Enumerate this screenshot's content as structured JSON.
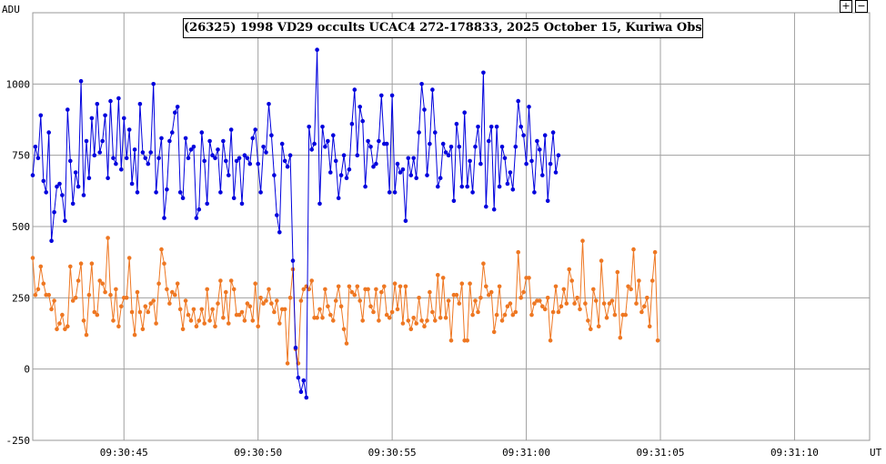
{
  "zoom": {
    "in_label": "+",
    "out_label": "−"
  },
  "chart_data": {
    "type": "line",
    "title": "(26325) 1998 VD29 occults UCAC4 272-178833, 2025 October 15, Kuriwa Observatory",
    "ylabel": "ADU",
    "xlabel": "UT",
    "ylim": [
      -250,
      1250
    ],
    "yticks": [
      -250,
      0,
      250,
      500,
      750,
      1000
    ],
    "xlim": [
      41.6,
      72.8
    ],
    "xticks": [
      45,
      50,
      55,
      60,
      65,
      70
    ],
    "xtick_labels": [
      "09:30:45",
      "09:30:50",
      "09:30:55",
      "09:31:00",
      "09:31:05",
      "09:31:10"
    ],
    "grid": true,
    "x_step_s": 0.1,
    "x_start_s": 41.6,
    "series": [
      {
        "color": "#0000dd",
        "values": [
          680,
          780,
          740,
          890,
          660,
          620,
          830,
          450,
          550,
          640,
          650,
          610,
          520,
          910,
          730,
          580,
          690,
          640,
          1010,
          610,
          800,
          670,
          880,
          750,
          930,
          760,
          800,
          890,
          670,
          940,
          740,
          720,
          950,
          700,
          880,
          740,
          840,
          650,
          770,
          620,
          930,
          760,
          740,
          720,
          760,
          1000,
          620,
          740,
          810,
          530,
          630,
          800,
          830,
          900,
          920,
          620,
          600,
          810,
          740,
          770,
          780,
          530,
          560,
          830,
          730,
          580,
          800,
          750,
          740,
          770,
          620,
          800,
          730,
          680,
          840,
          600,
          730,
          740,
          580,
          750,
          740,
          720,
          810,
          840,
          720,
          620,
          780,
          760,
          930,
          820,
          680,
          540,
          480,
          790,
          730,
          710,
          750,
          380,
          75,
          -30,
          -80,
          -40,
          -100,
          850,
          770,
          790,
          1120,
          580,
          850,
          780,
          800,
          690,
          820,
          730,
          600,
          680,
          750,
          670,
          700,
          860,
          980,
          750,
          920,
          870,
          640,
          800,
          780,
          710,
          720,
          800,
          960,
          790,
          790,
          620,
          960,
          620,
          720,
          690,
          700,
          520,
          740,
          680,
          740,
          670,
          830,
          1000,
          910,
          680,
          790,
          980,
          830,
          640,
          670,
          790,
          760,
          750,
          780,
          590,
          860,
          780,
          640,
          900,
          640,
          730,
          620,
          780,
          850,
          720,
          1040,
          570,
          800,
          850,
          560,
          850,
          640,
          780,
          740,
          650,
          690,
          630,
          780,
          940,
          850,
          820,
          720,
          920,
          730,
          620,
          800,
          770,
          680,
          820,
          590,
          720,
          830,
          690,
          750
        ]
      },
      {
        "color": "#ee7722",
        "values": [
          390,
          260,
          280,
          360,
          300,
          260,
          260,
          210,
          240,
          140,
          160,
          190,
          140,
          150,
          360,
          240,
          250,
          310,
          370,
          170,
          120,
          260,
          370,
          200,
          190,
          310,
          300,
          270,
          460,
          260,
          170,
          280,
          150,
          220,
          250,
          250,
          390,
          200,
          120,
          270,
          200,
          140,
          220,
          200,
          230,
          240,
          160,
          300,
          420,
          370,
          280,
          230,
          270,
          260,
          300,
          210,
          140,
          240,
          190,
          170,
          210,
          150,
          170,
          210,
          160,
          280,
          170,
          210,
          150,
          230,
          310,
          180,
          270,
          160,
          310,
          280,
          190,
          190,
          200,
          170,
          230,
          220,
          170,
          300,
          150,
          250,
          230,
          240,
          280,
          230,
          200,
          240,
          160,
          210,
          210,
          20,
          250,
          350,
          70,
          20,
          240,
          280,
          290,
          280,
          310,
          180,
          180,
          210,
          180,
          280,
          220,
          190,
          170,
          240,
          290,
          220,
          140,
          90,
          290,
          270,
          260,
          290,
          240,
          170,
          280,
          280,
          220,
          200,
          280,
          170,
          270,
          290,
          190,
          180,
          200,
          300,
          210,
          290,
          160,
          290,
          170,
          140,
          180,
          160,
          250,
          170,
          150,
          170,
          270,
          200,
          170,
          330,
          180,
          320,
          180,
          240,
          100,
          260,
          260,
          230,
          300,
          100,
          100,
          300,
          190,
          240,
          200,
          250,
          370,
          290,
          260,
          270,
          130,
          190,
          290,
          170,
          190,
          220,
          230,
          190,
          200,
          410,
          250,
          270,
          320,
          320,
          190,
          230,
          240,
          240,
          220,
          210,
          250,
          100,
          200,
          290,
          200,
          220,
          280,
          230,
          350,
          310,
          230,
          250,
          210,
          450,
          230,
          170,
          140,
          280,
          240,
          150,
          380,
          230,
          180,
          230,
          240,
          190,
          340,
          110,
          190,
          190,
          290,
          280,
          420,
          230,
          310,
          200,
          220,
          250,
          150,
          310,
          410,
          100
        ]
      }
    ]
  }
}
